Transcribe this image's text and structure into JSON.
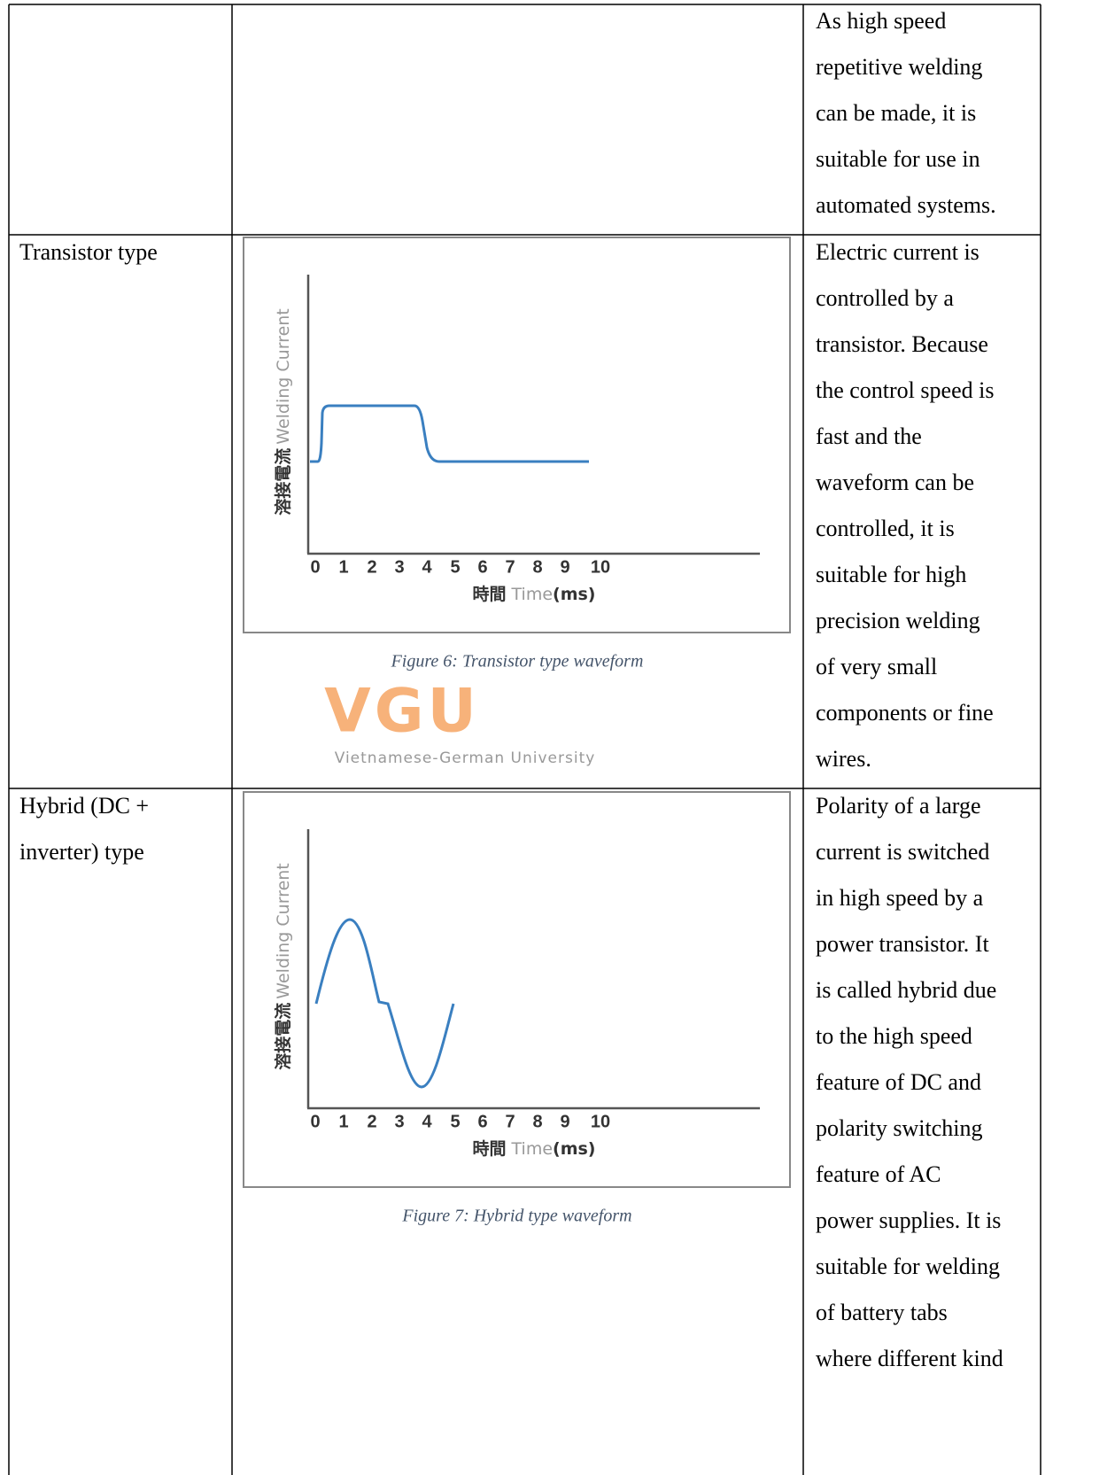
{
  "table": {
    "rows": [
      {
        "description": [
          "As high speed",
          "repetitive welding",
          "can be made, it is",
          "suitable for use in",
          "automated systems."
        ]
      },
      {
        "type": [
          "Transistor type"
        ],
        "figure": {
          "y_label_jp": "溶接電流",
          "y_label_en": "Welding Current",
          "x_ticks": [
            0,
            1,
            2,
            3,
            4,
            5,
            6,
            7,
            8,
            9,
            10
          ],
          "x_label_jp": "時間",
          "x_label_en": "Time",
          "x_label_unit": "(ms)",
          "caption": "Figure 6: Transistor type waveform"
        },
        "watermark": {
          "logo": "VGU",
          "text": "Vietnamese-German University"
        },
        "description": [
          "Electric current is",
          "controlled by a",
          "transistor. Because",
          "the control speed is",
          "fast and the",
          "waveform can be",
          "controlled, it is",
          "suitable for high",
          "precision welding",
          "of very small",
          "components or fine",
          "wires."
        ]
      },
      {
        "type": [
          "Hybrid (DC +",
          "inverter) type"
        ],
        "figure": {
          "y_label_jp": "溶接電流",
          "y_label_en": "Welding Current",
          "x_ticks": [
            0,
            1,
            2,
            3,
            4,
            5,
            6,
            7,
            8,
            9,
            10
          ],
          "x_label_jp": "時間",
          "x_label_en": "Time",
          "x_label_unit": "(ms)",
          "caption": "Figure 7: Hybrid type waveform"
        },
        "description": [
          "Polarity of a large",
          "current is switched",
          "in high speed by a",
          "power transistor. It",
          "is called hybrid due",
          "to the high speed",
          "feature of DC and",
          "polarity switching",
          "feature of AC",
          "power supplies. It is",
          "suitable for welding",
          "of battery tabs",
          "where different kind"
        ]
      }
    ]
  }
}
